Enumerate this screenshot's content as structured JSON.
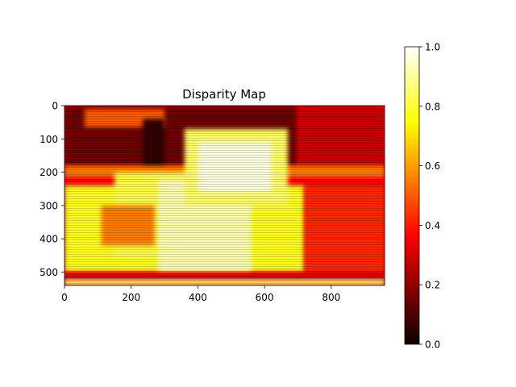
{
  "chart_data": {
    "type": "heatmap",
    "title": "Disparity Map",
    "colormap": "hot",
    "x_range": [
      0,
      960
    ],
    "y_range": [
      0,
      540
    ],
    "y_inverted": true,
    "x_ticks": [
      0,
      200,
      400,
      600,
      800
    ],
    "y_ticks": [
      0,
      100,
      200,
      300,
      400,
      500
    ],
    "colorbar": {
      "range": [
        0.0,
        1.0
      ],
      "ticks": [
        "0.0",
        "0.2",
        "0.4",
        "0.6",
        "0.8",
        "1.0"
      ]
    },
    "regions": [
      {
        "name": "background",
        "x": [
          0,
          960
        ],
        "y": [
          0,
          540
        ],
        "value": 0.34
      },
      {
        "name": "upper-dark-band",
        "x": [
          0,
          700
        ],
        "y": [
          0,
          185
        ],
        "value": 0.14
      },
      {
        "name": "upper-right-band",
        "x": [
          700,
          960
        ],
        "y": [
          0,
          200
        ],
        "value": 0.27
      },
      {
        "name": "top-left-patch",
        "x": [
          60,
          300
        ],
        "y": [
          10,
          65
        ],
        "value": 0.5
      },
      {
        "name": "dark-column",
        "x": [
          235,
          300
        ],
        "y": [
          40,
          200
        ],
        "value": 0.05
      },
      {
        "name": "horizontal-rail",
        "x": [
          0,
          960
        ],
        "y": [
          180,
          215
        ],
        "value": 0.55
      },
      {
        "name": "lower-left-body",
        "x": [
          0,
          720
        ],
        "y": [
          240,
          500
        ],
        "value": 0.78
      },
      {
        "name": "lower-right-body",
        "x": [
          720,
          960
        ],
        "y": [
          240,
          500
        ],
        "value": 0.42
      },
      {
        "name": "rear-block",
        "x": [
          150,
          470
        ],
        "y": [
          200,
          460
        ],
        "value": 0.82
      },
      {
        "name": "mid-block",
        "x": [
          280,
          560
        ],
        "y": [
          220,
          500
        ],
        "value": 0.92
      },
      {
        "name": "texture-patch",
        "x": [
          110,
          270
        ],
        "y": [
          300,
          420
        ],
        "value": 0.55
      },
      {
        "name": "object-body",
        "x": [
          360,
          670
        ],
        "y": [
          70,
          300
        ],
        "value": 0.85
      },
      {
        "name": "object-highlight",
        "x": [
          400,
          620
        ],
        "y": [
          110,
          260
        ],
        "value": 0.97
      },
      {
        "name": "bottom-dark-strip",
        "x": [
          0,
          960
        ],
        "y": [
          500,
          522
        ],
        "value": 0.3
      },
      {
        "name": "bottom-edge",
        "x": [
          0,
          960
        ],
        "y": [
          522,
          540
        ],
        "value": 0.88
      }
    ]
  }
}
